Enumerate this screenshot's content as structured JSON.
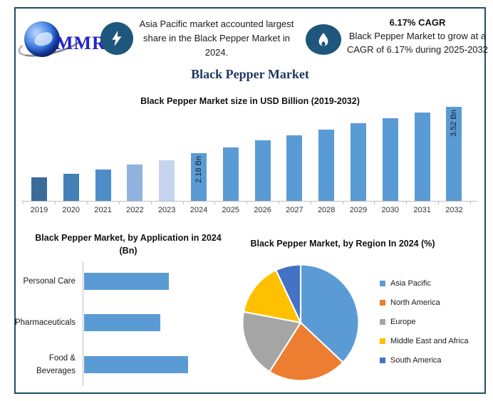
{
  "header": {
    "logo": {
      "text": "MMR"
    },
    "highlight": {
      "icon": "lightning-icon",
      "text": "Asia Pacific market accounted largest share in the Black Pepper Market in 2024."
    },
    "cagr": {
      "icon": "flame-icon",
      "title": "6.17% CAGR",
      "text": "Black Pepper Market to grow at a CAGR of 6.17% during 2025-2032"
    }
  },
  "page_title": "Black Pepper Market",
  "theme": {
    "frame_border": "#1f4e63",
    "icon_circle": "#1f567b",
    "title_navy": "#1f3864",
    "primary_bar": "#5b9bd5",
    "axis_gray": "#bfbfbf"
  },
  "chart_data": [
    {
      "id": "market-size",
      "type": "bar",
      "title": "Black Pepper Market size in USD Billion (2019-2032)",
      "categories": [
        "2019",
        "2020",
        "2021",
        "2022",
        "2023",
        "2024",
        "2025",
        "2026",
        "2027",
        "2028",
        "2029",
        "2030",
        "2031",
        "2032"
      ],
      "values": [
        1.48,
        1.58,
        1.7,
        1.85,
        1.97,
        2.18,
        2.35,
        2.55,
        2.7,
        2.87,
        3.04,
        3.19,
        3.35,
        3.52
      ],
      "unit": "USD Bn",
      "data_labels": {
        "2024": "2.18 Bn",
        "2032": "3.52 Bn"
      },
      "bar_colors": [
        "#3a6b99",
        "#4181b5",
        "#4d8ec9",
        "#8fb3de",
        "#c5d5ed",
        "#5b9bd5",
        "#5b9bd5",
        "#5b9bd5",
        "#5b9bd5",
        "#5b9bd5",
        "#5b9bd5",
        "#5b9bd5",
        "#5b9bd5",
        "#5b9bd5"
      ],
      "xlabel": "",
      "ylabel": "USD Billion",
      "grid": false
    },
    {
      "id": "by-application",
      "type": "bar",
      "orientation": "horizontal",
      "title": "Black Pepper Market, by Application in 2024 (Bn)",
      "categories": [
        "Personal Care",
        "Pharmaceuticals",
        "Food & Beverages"
      ],
      "values": [
        0.7,
        0.63,
        0.86
      ],
      "unit": "Bn",
      "bar_color": "#5b9bd5",
      "grid": false
    },
    {
      "id": "by-region",
      "type": "pie",
      "title": "Black Pepper Market, by Region In 2024 (%)",
      "labels": [
        "Asia Pacific",
        "North America",
        "Europe",
        "Middle East and Africa",
        "South America"
      ],
      "values": [
        37,
        22,
        19,
        15,
        7
      ],
      "colors": [
        "#5b9bd5",
        "#ed7d31",
        "#a5a5a5",
        "#ffc000",
        "#4472c4"
      ],
      "legend_position": "right",
      "start_angle_deg": 0,
      "direction": "clockwise"
    }
  ]
}
